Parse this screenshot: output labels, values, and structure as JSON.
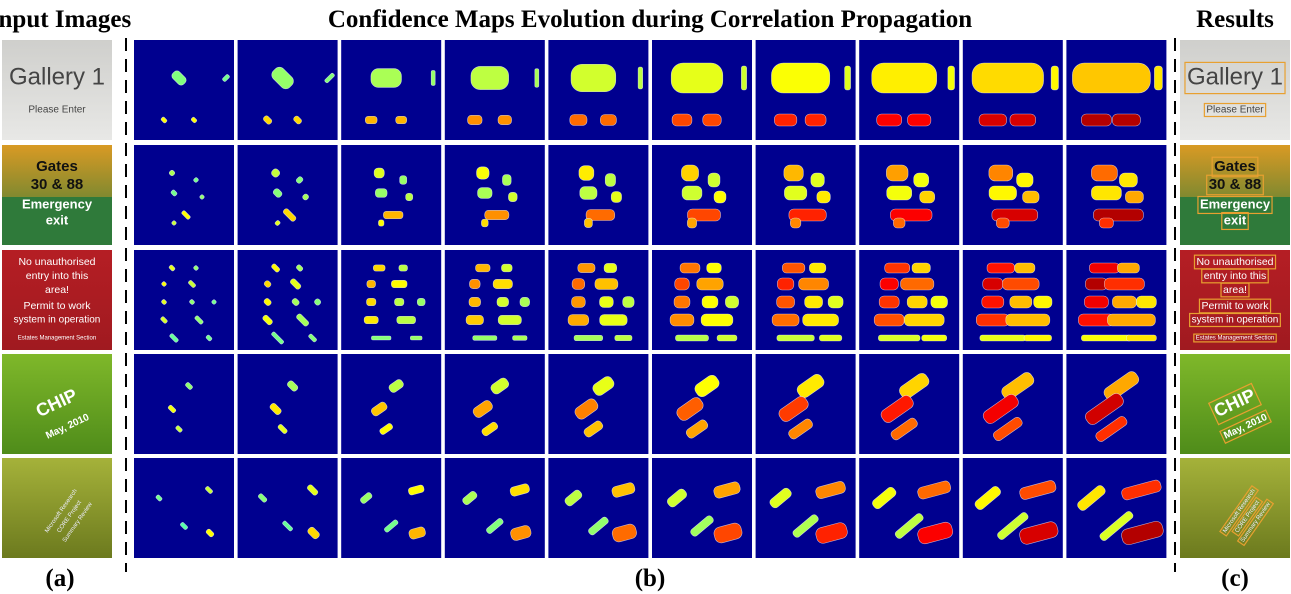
{
  "header": {
    "input_title": "Input Images",
    "maps_title": "Confidence Maps Evolution during Correlation Propagation",
    "results_title": "Results"
  },
  "images": [
    {
      "lines": [
        "Gallery 1",
        "Please Enter"
      ]
    },
    {
      "lines": [
        "Gates",
        "30 & 88",
        "Emergency",
        "exit"
      ]
    },
    {
      "lines": [
        "No unauthorised",
        "entry into this",
        "area!",
        "Permit to work",
        "system in operation",
        "Estates Management Section"
      ]
    },
    {
      "lines": [
        "CHIP",
        "May, 2010"
      ]
    },
    {
      "lines": [
        "Microsoft Research",
        "CORE Project",
        "Summary Review"
      ]
    }
  ],
  "captions": {
    "a": "(a)",
    "b": "(b)",
    "c": "(c)"
  }
}
